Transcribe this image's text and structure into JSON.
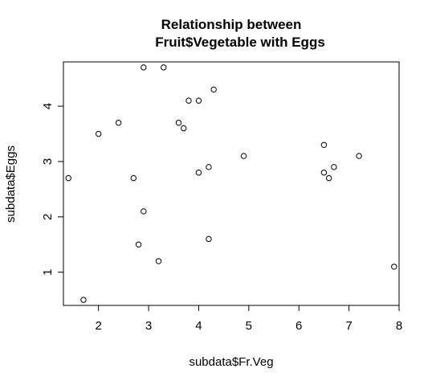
{
  "chart_data": {
    "type": "scatter",
    "title_lines": [
      "Relationship between",
      "Fruit$Vegetable with Eggs"
    ],
    "xlabel": "subdata$Fr.Veg",
    "ylabel": "subdata$Eggs",
    "xlim": [
      1.3,
      8.0
    ],
    "ylim": [
      0.4,
      4.8
    ],
    "xticks": [
      2,
      3,
      4,
      5,
      6,
      7,
      8
    ],
    "yticks": [
      1,
      2,
      3,
      4
    ],
    "grid": false,
    "marker": "open-circle",
    "points": [
      {
        "x": 1.4,
        "y": 2.7
      },
      {
        "x": 1.7,
        "y": 0.5
      },
      {
        "x": 2.0,
        "y": 3.5
      },
      {
        "x": 2.4,
        "y": 3.7
      },
      {
        "x": 2.7,
        "y": 2.7
      },
      {
        "x": 2.8,
        "y": 1.5
      },
      {
        "x": 2.9,
        "y": 2.1
      },
      {
        "x": 2.9,
        "y": 4.7
      },
      {
        "x": 3.2,
        "y": 1.2
      },
      {
        "x": 3.3,
        "y": 4.7
      },
      {
        "x": 3.6,
        "y": 3.7
      },
      {
        "x": 3.7,
        "y": 3.6
      },
      {
        "x": 3.8,
        "y": 4.1
      },
      {
        "x": 4.0,
        "y": 4.1
      },
      {
        "x": 4.0,
        "y": 2.8
      },
      {
        "x": 4.2,
        "y": 2.9
      },
      {
        "x": 4.2,
        "y": 1.6
      },
      {
        "x": 4.3,
        "y": 4.3
      },
      {
        "x": 4.9,
        "y": 3.1
      },
      {
        "x": 6.5,
        "y": 3.3
      },
      {
        "x": 6.5,
        "y": 2.8
      },
      {
        "x": 6.6,
        "y": 2.7
      },
      {
        "x": 6.7,
        "y": 2.9
      },
      {
        "x": 7.2,
        "y": 3.1
      },
      {
        "x": 7.9,
        "y": 1.1
      }
    ]
  }
}
